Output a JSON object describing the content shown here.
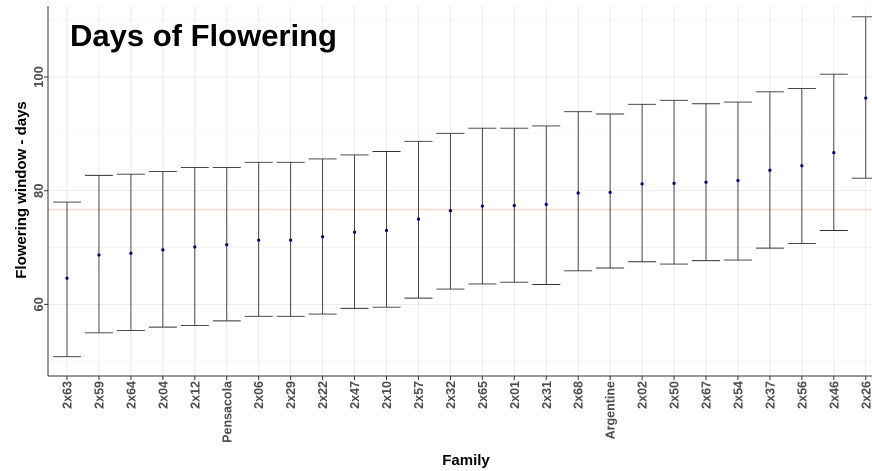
{
  "chart_data": {
    "type": "errorbar",
    "title": "Days of Flowering",
    "xlabel": "Family",
    "ylabel": "Flowering window - days",
    "ylim": [
      47.4,
      112.5
    ],
    "yticks": [
      60,
      80,
      100
    ],
    "grid": true,
    "reference_line": {
      "y": 76.7,
      "color": "#f5deb3"
    },
    "point_color": "#00008b",
    "bar_color": "#333333",
    "categories": [
      "2x63",
      "2x59",
      "2x64",
      "2x04",
      "2x12",
      "Pensacola",
      "2x06",
      "2x29",
      "2x22",
      "2x47",
      "2x10",
      "2x57",
      "2x32",
      "2x65",
      "2x01",
      "2x31",
      "2x68",
      "Argentine",
      "2x02",
      "2x50",
      "2x67",
      "2x54",
      "2x37",
      "2x56",
      "2x46",
      "2x26"
    ],
    "series": [
      {
        "mean": [
          64.6,
          68.7,
          69.0,
          69.6,
          70.1,
          70.5,
          71.3,
          71.3,
          71.9,
          72.7,
          73.0,
          75.0,
          76.5,
          77.3,
          77.4,
          77.6,
          79.6,
          79.7,
          81.2,
          81.3,
          81.5,
          81.8,
          83.6,
          84.4,
          86.7,
          96.3
        ],
        "lower": [
          50.8,
          55.0,
          55.4,
          56.0,
          56.3,
          57.1,
          57.9,
          57.9,
          58.3,
          59.3,
          59.5,
          61.1,
          62.7,
          63.6,
          63.9,
          63.5,
          65.9,
          66.4,
          67.5,
          67.1,
          67.7,
          67.8,
          69.9,
          70.7,
          73.0,
          82.2
        ],
        "upper": [
          78.0,
          82.7,
          82.9,
          83.4,
          84.1,
          84.1,
          85.0,
          85.0,
          85.6,
          86.3,
          86.9,
          88.7,
          90.1,
          91.0,
          91.0,
          91.4,
          93.9,
          93.5,
          95.2,
          95.9,
          95.3,
          95.6,
          97.4,
          98.0,
          100.5,
          110.6
        ]
      }
    ]
  }
}
